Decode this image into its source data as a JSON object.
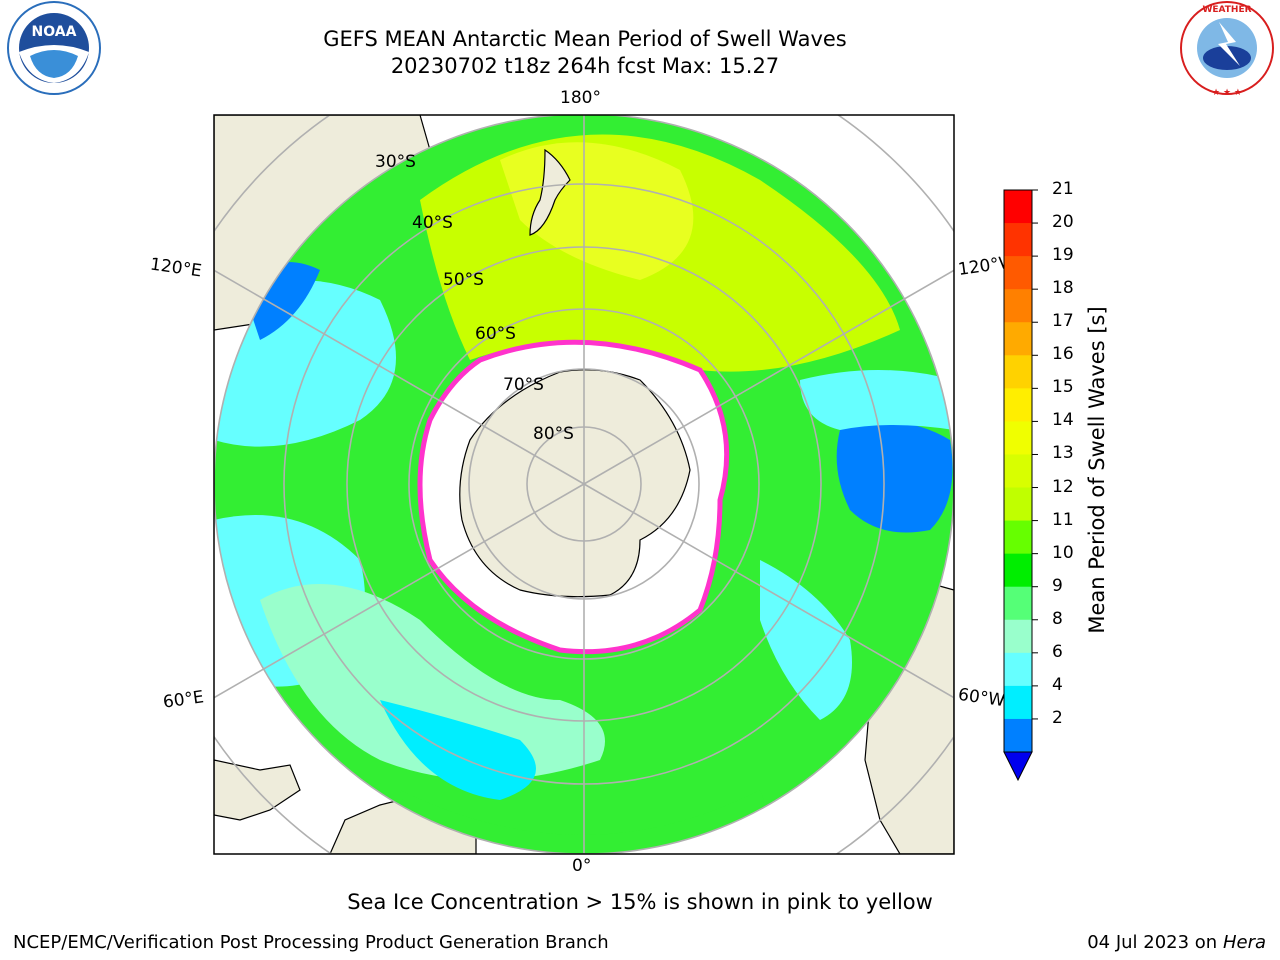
{
  "header": {
    "title_line1": "GEFS MEAN Antarctic Mean Period of Swell Waves",
    "title_line2": "20230702 t18z 264h fcst   Max: 15.27"
  },
  "logos": {
    "left": "NOAA",
    "left_ring_text": "NATIONAL OCEANIC AND ATMOSPHERIC ADMINISTRATION · U.S. DEPARTMENT OF COMMERCE",
    "right_ring_text": "NATIONAL WEATHER SERVICE"
  },
  "map": {
    "projection": "south-polar-stereographic",
    "longitude_labels": {
      "top": "180°",
      "bottom": "0°",
      "upper_left": "120°E",
      "upper_right": "120°W",
      "lower_left": "60°E",
      "lower_right": "60°W"
    },
    "latitude_labels": [
      "30°S",
      "40°S",
      "50°S",
      "60°S",
      "70°S",
      "80°S"
    ],
    "colors": {
      "land": "#eeecdb",
      "ice_free_ocean_white": "#ffffff",
      "grid": "#b0b0b0",
      "ice_edge": "#ff33cc"
    }
  },
  "colorbar": {
    "title": "Mean Period of Swell Waves [s]",
    "ticks": [
      "21",
      "20",
      "19",
      "18",
      "17",
      "16",
      "15",
      "14",
      "13",
      "12",
      "11",
      "10",
      "9",
      "8",
      "6",
      "4",
      "2"
    ],
    "colors": [
      "#ff0000",
      "#ff3300",
      "#ff5a00",
      "#ff8000",
      "#ffaa00",
      "#ffd200",
      "#ffee00",
      "#f0ff00",
      "#d8ff00",
      "#c0ff00",
      "#66ff00",
      "#00ee00",
      "#55ff77",
      "#99ffcc",
      "#66ffff",
      "#00eeff",
      "#0080ff"
    ],
    "extend_color": "#0000ee"
  },
  "footnote": "Sea Ice Concentration > 15% is shown in pink to yellow",
  "credit": "NCEP/EMC/Verification Post Processing Product Generation Branch",
  "date_prefix": "04 Jul 2023 on ",
  "date_host": "Hera"
}
